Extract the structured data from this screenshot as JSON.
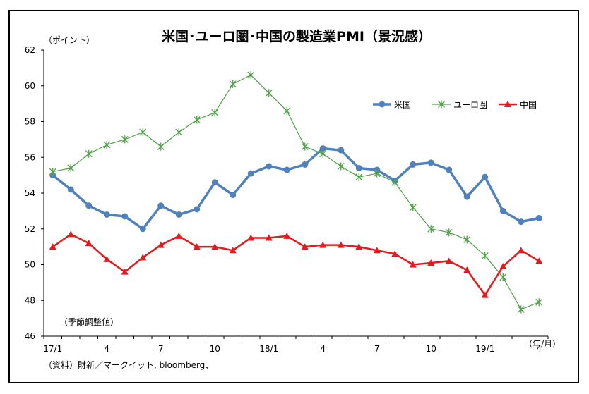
{
  "chart_data": {
    "type": "line",
    "title": "米国･ユーロ圏･中国の製造業PMI（景況感）",
    "ylabel": "（ポイント）",
    "xlabel": "（年/月）",
    "note": "（季節調整値）",
    "source": "（資料）財新／マークイット, bloomberg、",
    "ylim": [
      46,
      62
    ],
    "yticks": [
      "46",
      "48",
      "50",
      "52",
      "54",
      "56",
      "58",
      "60",
      "62"
    ],
    "xtick_labels": [
      "17/1",
      "",
      "",
      "4",
      "",
      "",
      "7",
      "",
      "",
      "10",
      "",
      "",
      "18/1",
      "",
      "",
      "4",
      "",
      "",
      "7",
      "",
      "",
      "10",
      "",
      "",
      "19/1",
      "",
      "",
      "4"
    ],
    "grid": false,
    "legend_position": "top-right",
    "series": [
      {
        "name": "米国",
        "color": "#4F81BD",
        "marker": "circle",
        "values": [
          55.0,
          54.2,
          53.3,
          52.8,
          52.7,
          52.0,
          53.3,
          52.8,
          53.1,
          54.6,
          53.9,
          55.1,
          55.5,
          55.3,
          55.6,
          56.5,
          56.4,
          55.4,
          55.3,
          54.7,
          55.6,
          55.7,
          55.3,
          53.8,
          54.9,
          53.0,
          52.4,
          52.6
        ]
      },
      {
        "name": "ユーロ圏",
        "color": "#4EA346",
        "marker": "star",
        "values": [
          55.2,
          55.4,
          56.2,
          56.7,
          57.0,
          57.4,
          56.6,
          57.4,
          58.1,
          58.5,
          60.1,
          60.6,
          59.6,
          58.6,
          56.6,
          56.2,
          55.5,
          54.9,
          55.1,
          54.6,
          53.2,
          52.0,
          51.8,
          51.4,
          50.5,
          49.3,
          47.5,
          47.9
        ]
      },
      {
        "name": "中国",
        "color": "#E41A1C",
        "marker": "triangle",
        "values": [
          51.0,
          51.7,
          51.2,
          50.3,
          49.6,
          50.4,
          51.1,
          51.6,
          51.0,
          51.0,
          50.8,
          51.5,
          51.5,
          51.6,
          51.0,
          51.1,
          51.1,
          51.0,
          50.8,
          50.6,
          50.0,
          50.1,
          50.2,
          49.7,
          48.3,
          49.9,
          50.8,
          50.2
        ]
      }
    ]
  }
}
